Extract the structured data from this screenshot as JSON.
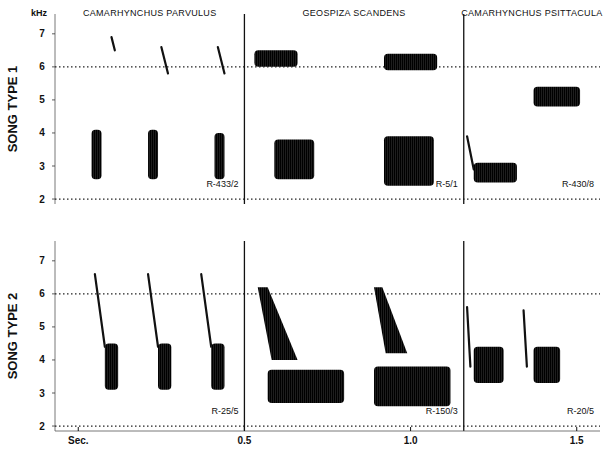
{
  "chart_data": {
    "type": "spectrogram",
    "ylabel": "kHz",
    "xlim": [
      -0.07,
      1.57
    ],
    "xticks": [
      {
        "value": 0,
        "label": "Sec."
      },
      0.5,
      {
        "value": 1.0,
        "label": "1.0"
      },
      1.5
    ],
    "ylim": [
      1.85,
      7.6
    ],
    "yticks": [
      2,
      3,
      4,
      5,
      6,
      7
    ],
    "reference_lines": [
      2,
      6
    ],
    "columns": [
      {
        "name": "CAMARHYNCHUS PARVULUS",
        "xlim": [
          -0.07,
          0.5
        ]
      },
      {
        "name": "GEOSPIZA SCANDENS",
        "xlim": [
          0.5,
          1.16
        ]
      },
      {
        "name": "CAMARHYNCHUS PSITTACULA",
        "xlim": [
          1.16,
          1.57
        ]
      }
    ],
    "rows": [
      {
        "label": "SONG TYPE 1",
        "panels": [
          {
            "recording": "R-433/2",
            "notes": [
              {
                "type": "blob",
                "t": [
                  0.04,
                  0.07
                ],
                "f": [
                  2.6,
                  4.1
                ]
              },
              {
                "type": "blob",
                "t": [
                  0.21,
                  0.24
                ],
                "f": [
                  2.6,
                  4.1
                ]
              },
              {
                "type": "blob",
                "t": [
                  0.41,
                  0.44
                ],
                "f": [
                  2.6,
                  4.0
                ]
              },
              {
                "type": "sweep",
                "t": [
                  0.1,
                  0.11
                ],
                "f": [
                  6.9,
                  6.5
                ]
              },
              {
                "type": "sweep",
                "t": [
                  0.25,
                  0.27
                ],
                "f": [
                  6.6,
                  5.8
                ]
              },
              {
                "type": "sweep",
                "t": [
                  0.42,
                  0.44
                ],
                "f": [
                  6.6,
                  5.8
                ]
              }
            ]
          },
          {
            "recording": "R-5/1",
            "notes": [
              {
                "type": "blob",
                "t": [
                  0.53,
                  0.66
                ],
                "f": [
                  6.0,
                  6.5
                ]
              },
              {
                "type": "blob",
                "t": [
                  0.92,
                  1.08
                ],
                "f": [
                  5.9,
                  6.4
                ]
              },
              {
                "type": "blob",
                "t": [
                  0.59,
                  0.71
                ],
                "f": [
                  2.6,
                  3.8
                ]
              },
              {
                "type": "blob",
                "t": [
                  0.92,
                  1.07
                ],
                "f": [
                  2.4,
                  3.9
                ]
              }
            ]
          },
          {
            "recording": "R-430/8",
            "notes": [
              {
                "type": "sweep",
                "t": [
                  1.17,
                  1.19
                ],
                "f": [
                  3.9,
                  2.9
                ]
              },
              {
                "type": "blob",
                "t": [
                  1.19,
                  1.32
                ],
                "f": [
                  2.5,
                  3.1
                ]
              },
              {
                "type": "blob",
                "t": [
                  1.37,
                  1.51
                ],
                "f": [
                  4.8,
                  5.4
                ]
              }
            ]
          }
        ]
      },
      {
        "label": "SONG TYPE 2",
        "panels": [
          {
            "recording": "R-25/5",
            "notes": [
              {
                "type": "sweep",
                "t": [
                  0.05,
                  0.08
                ],
                "f": [
                  6.6,
                  4.4
                ]
              },
              {
                "type": "blob",
                "t": [
                  0.08,
                  0.12
                ],
                "f": [
                  3.1,
                  4.5
                ]
              },
              {
                "type": "sweep",
                "t": [
                  0.21,
                  0.24
                ],
                "f": [
                  6.6,
                  4.4
                ]
              },
              {
                "type": "blob",
                "t": [
                  0.24,
                  0.28
                ],
                "f": [
                  3.1,
                  4.5
                ]
              },
              {
                "type": "sweep",
                "t": [
                  0.37,
                  0.4
                ],
                "f": [
                  6.6,
                  4.4
                ]
              },
              {
                "type": "blob",
                "t": [
                  0.4,
                  0.44
                ],
                "f": [
                  3.1,
                  4.5
                ]
              }
            ]
          },
          {
            "recording": "R-150/3",
            "notes": [
              {
                "type": "wedge",
                "t": [
                  0.54,
                  0.66
                ],
                "f": [
                  4.0,
                  6.2
                ]
              },
              {
                "type": "blob",
                "t": [
                  0.57,
                  0.8
                ],
                "f": [
                  2.7,
                  3.7
                ]
              },
              {
                "type": "wedge",
                "t": [
                  0.89,
                  0.99
                ],
                "f": [
                  4.2,
                  6.2
                ]
              },
              {
                "type": "blob",
                "t": [
                  0.89,
                  1.12
                ],
                "f": [
                  2.6,
                  3.8
                ]
              }
            ]
          },
          {
            "recording": "R-20/5",
            "notes": [
              {
                "type": "sweep",
                "t": [
                  1.17,
                  1.18
                ],
                "f": [
                  5.6,
                  3.8
                ]
              },
              {
                "type": "blob",
                "t": [
                  1.19,
                  1.28
                ],
                "f": [
                  3.3,
                  4.4
                ]
              },
              {
                "type": "sweep",
                "t": [
                  1.34,
                  1.35
                ],
                "f": [
                  5.5,
                  3.8
                ]
              },
              {
                "type": "blob",
                "t": [
                  1.37,
                  1.45
                ],
                "f": [
                  3.3,
                  4.4
                ]
              }
            ]
          }
        ]
      }
    ]
  }
}
